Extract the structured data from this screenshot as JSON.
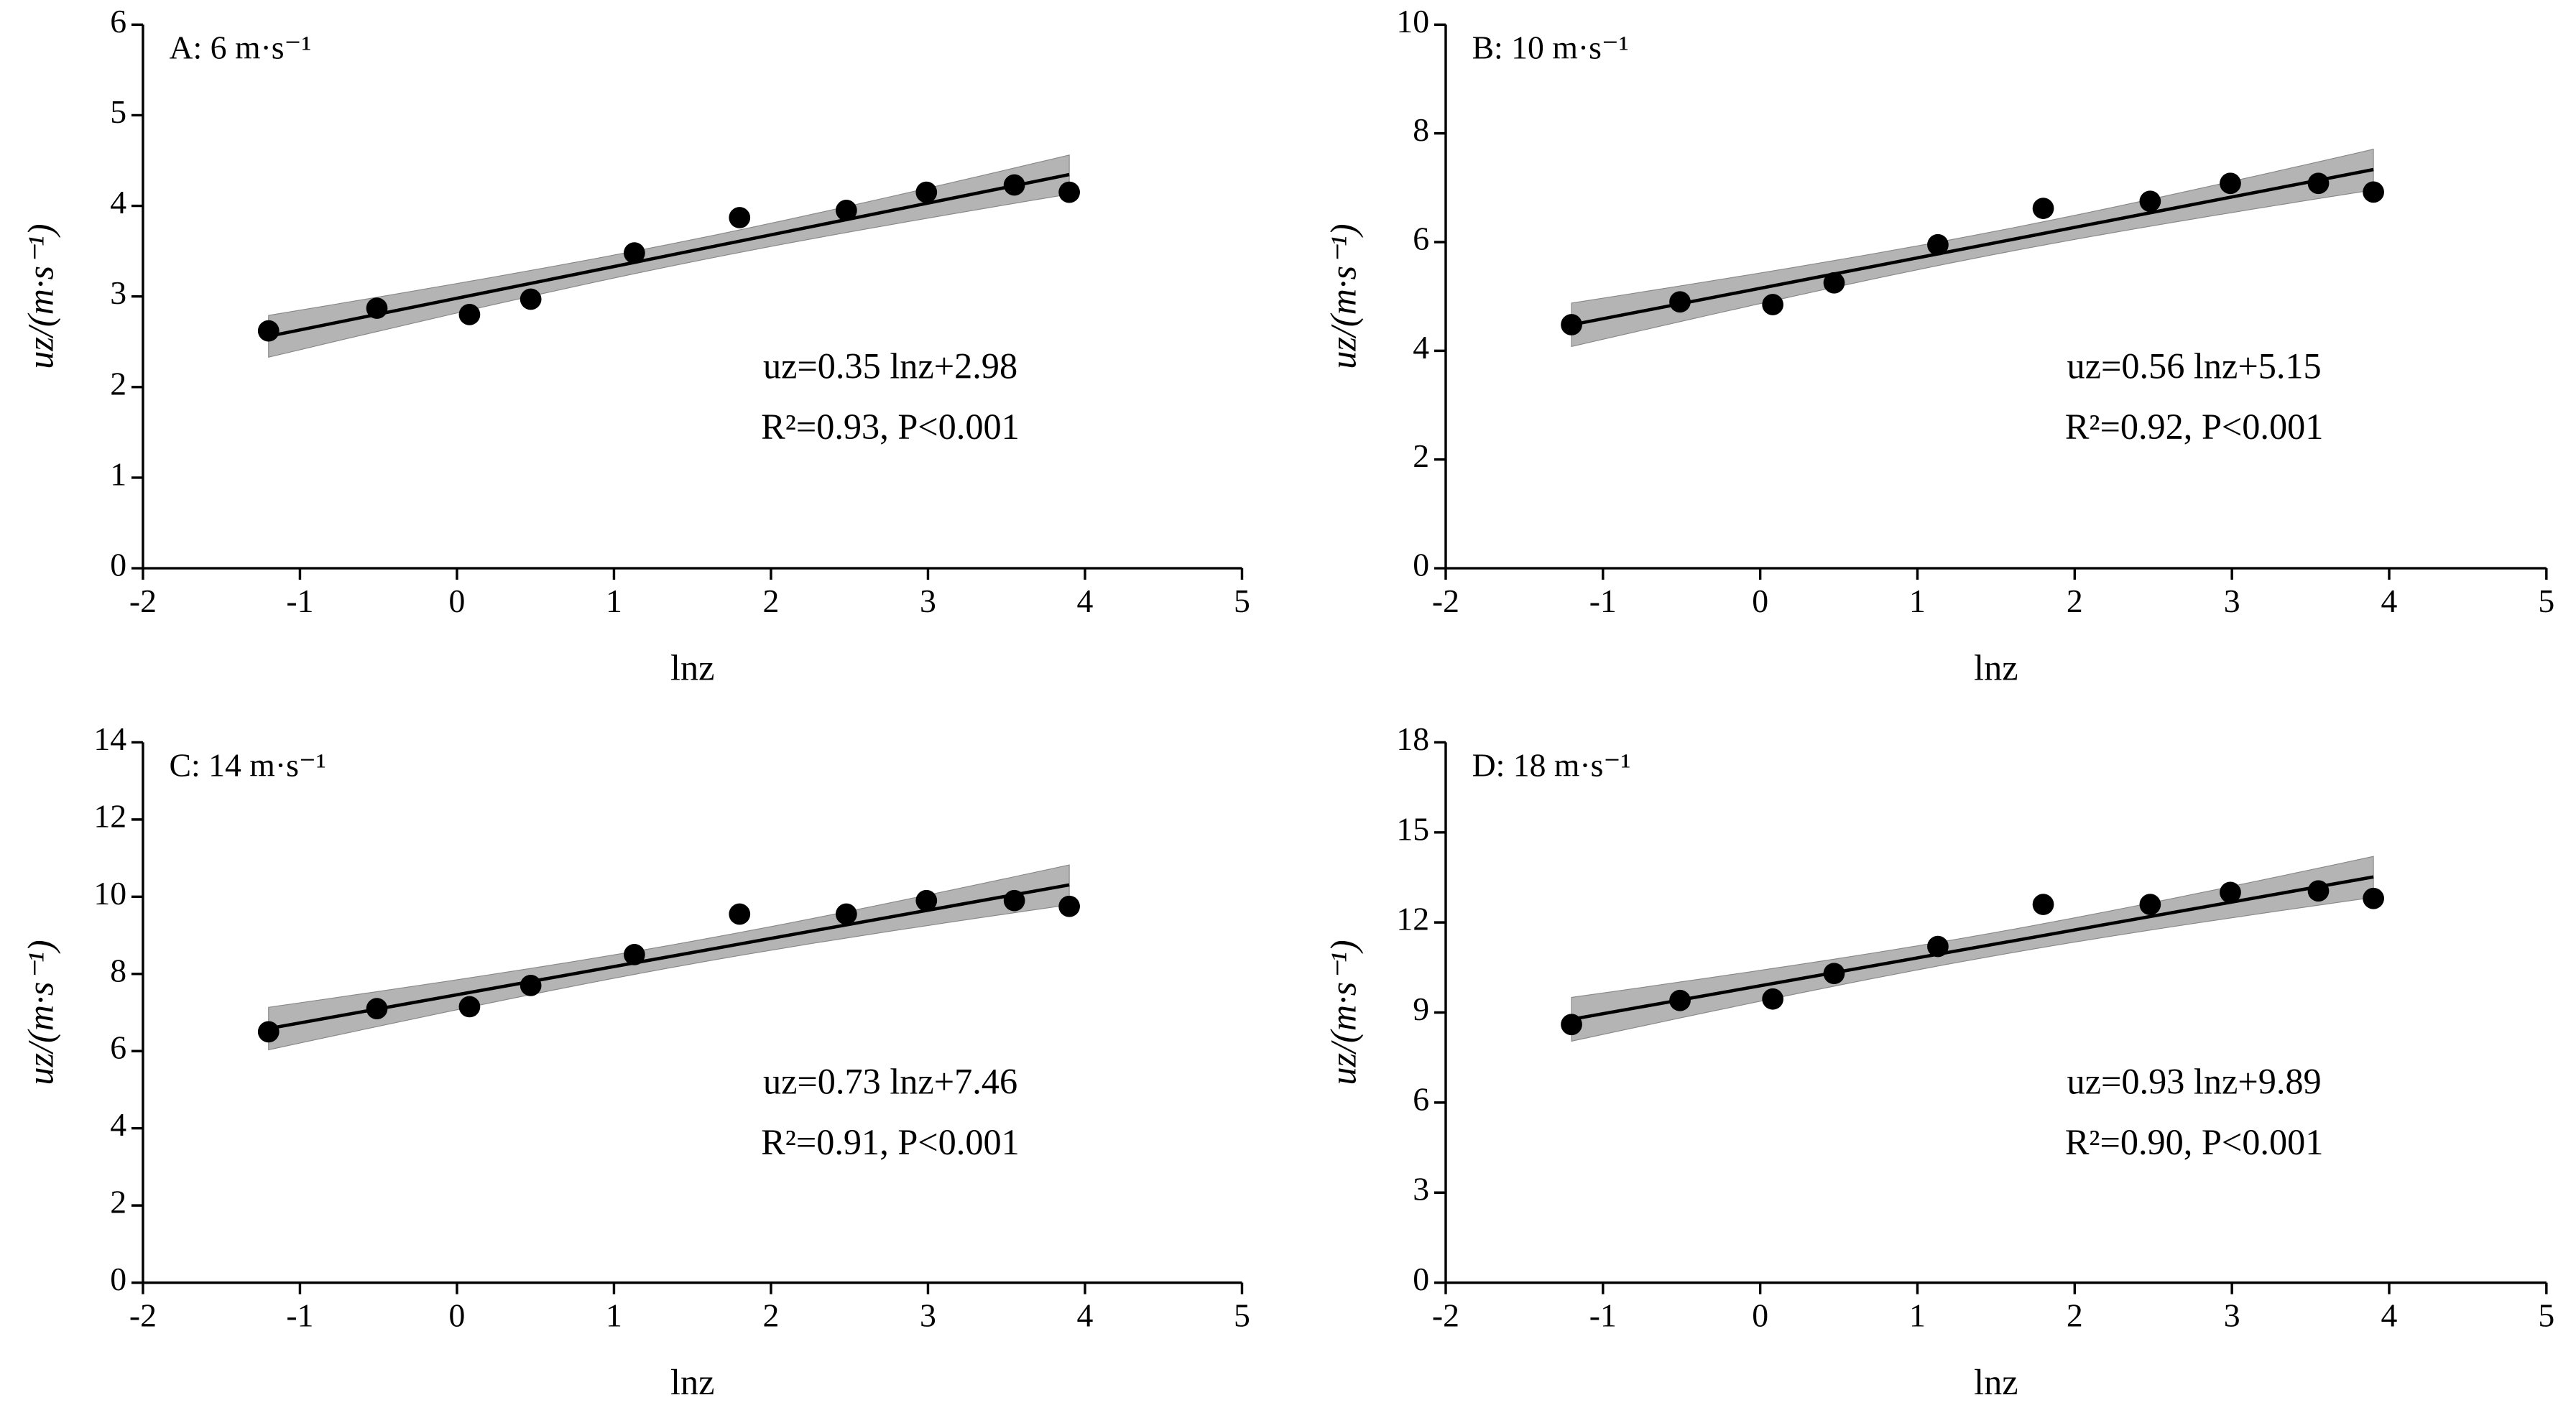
{
  "chart_data": [
    {
      "type": "scatter",
      "title": "A: 6 m·s⁻¹",
      "xlabel": "lnz",
      "ylabel": "uz/(m·s⁻¹)",
      "x": [
        -1.2,
        -0.51,
        0.08,
        0.47,
        1.13,
        1.8,
        2.48,
        2.99,
        3.55,
        3.9
      ],
      "values": [
        2.62,
        2.87,
        2.8,
        2.97,
        3.48,
        3.87,
        3.95,
        4.15,
        4.23,
        4.15
      ],
      "fit": {
        "slope": 0.35,
        "intercept": 2.98
      },
      "annotations": [
        "uz=0.35 lnz+2.98",
        "R²=0.93, P<0.001"
      ],
      "xlim": [
        -2,
        5
      ],
      "xticks": [
        -2,
        -1,
        0,
        1,
        2,
        3,
        4,
        5
      ],
      "ylim": [
        0,
        6
      ],
      "yticks": [
        0,
        1,
        2,
        3,
        4,
        5,
        6
      ],
      "color": "#000000",
      "band_color": "#b4b4b4"
    },
    {
      "type": "scatter",
      "title": "B: 10 m·s⁻¹",
      "xlabel": "lnz",
      "ylabel": "uz/(m·s⁻¹)",
      "x": [
        -1.2,
        -0.51,
        0.08,
        0.47,
        1.13,
        1.8,
        2.48,
        2.99,
        3.55,
        3.9
      ],
      "values": [
        4.48,
        4.9,
        4.85,
        5.25,
        5.95,
        6.62,
        6.75,
        7.08,
        7.08,
        6.92
      ],
      "fit": {
        "slope": 0.56,
        "intercept": 5.15
      },
      "annotations": [
        "uz=0.56 lnz+5.15",
        "R²=0.92, P<0.001"
      ],
      "xlim": [
        -2,
        5
      ],
      "xticks": [
        -2,
        -1,
        0,
        1,
        2,
        3,
        4,
        5
      ],
      "ylim": [
        0,
        10
      ],
      "yticks": [
        0,
        2,
        4,
        6,
        8,
        10
      ],
      "color": "#000000",
      "band_color": "#b4b4b4"
    },
    {
      "type": "scatter",
      "title": "C: 14 m·s⁻¹",
      "xlabel": "lnz",
      "ylabel": "uz/(m·s⁻¹)",
      "x": [
        -1.2,
        -0.51,
        0.08,
        0.47,
        1.13,
        1.8,
        2.48,
        2.99,
        3.55,
        3.9
      ],
      "values": [
        6.5,
        7.1,
        7.15,
        7.7,
        8.5,
        9.55,
        9.55,
        9.9,
        9.9,
        9.75
      ],
      "fit": {
        "slope": 0.73,
        "intercept": 7.46
      },
      "annotations": [
        "uz=0.73 lnz+7.46",
        "R²=0.91, P<0.001"
      ],
      "xlim": [
        -2,
        5
      ],
      "xticks": [
        -2,
        -1,
        0,
        1,
        2,
        3,
        4,
        5
      ],
      "ylim": [
        0,
        14
      ],
      "yticks": [
        0,
        2,
        4,
        6,
        8,
        10,
        12,
        14
      ],
      "color": "#000000",
      "band_color": "#b4b4b4"
    },
    {
      "type": "scatter",
      "title": "D: 18 m·s⁻¹",
      "xlabel": "lnz",
      "ylabel": "uz/(m·s⁻¹)",
      "x": [
        -1.2,
        -0.51,
        0.08,
        0.47,
        1.13,
        1.8,
        2.48,
        2.99,
        3.55,
        3.9
      ],
      "values": [
        8.6,
        9.4,
        9.45,
        10.3,
        11.2,
        12.6,
        12.6,
        13.0,
        13.05,
        12.8
      ],
      "fit": {
        "slope": 0.93,
        "intercept": 9.89
      },
      "annotations": [
        "uz=0.93 lnz+9.89",
        "R²=0.90, P<0.001"
      ],
      "xlim": [
        -2,
        5
      ],
      "xticks": [
        -2,
        -1,
        0,
        1,
        2,
        3,
        4,
        5
      ],
      "ylim": [
        0,
        18
      ],
      "yticks": [
        0,
        3,
        6,
        9,
        12,
        15,
        18
      ],
      "color": "#000000",
      "band_color": "#b4b4b4"
    }
  ]
}
